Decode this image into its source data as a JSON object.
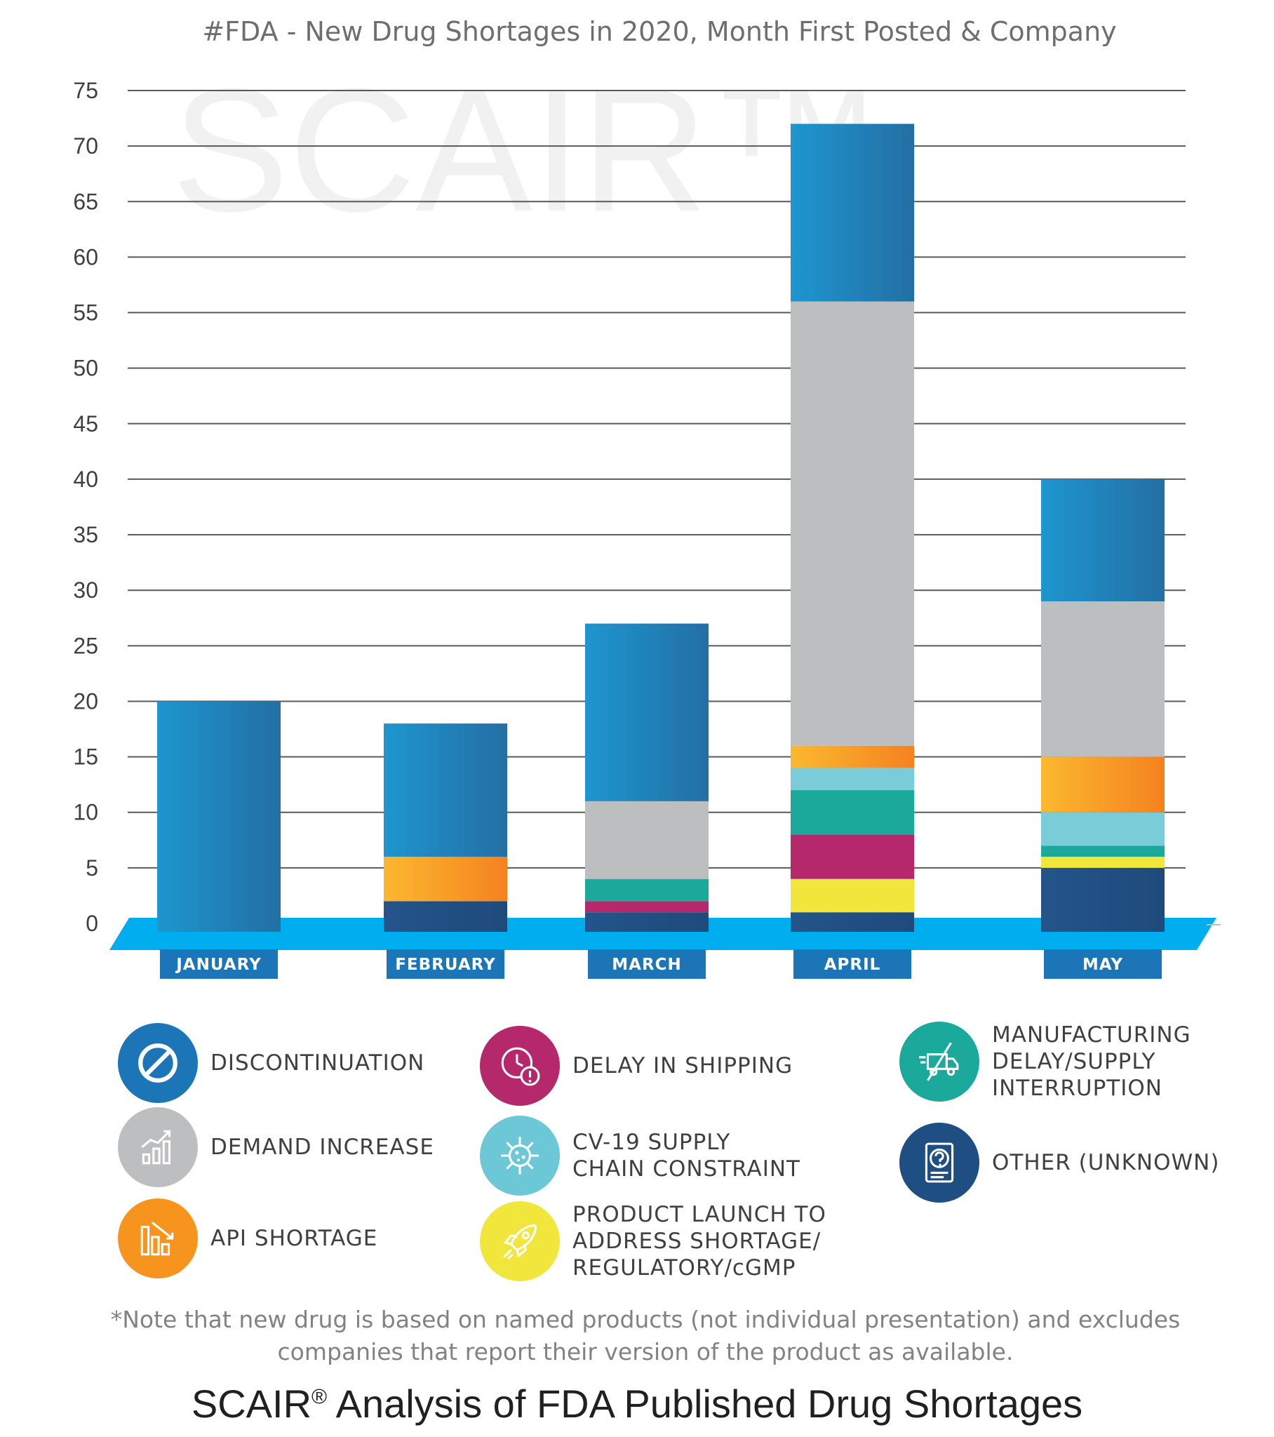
{
  "watermark": "SCAIR™",
  "chart_data": {
    "type": "bar",
    "stacked": true,
    "title": "#FDA - New Drug Shortages in 2020, Month First Posted & Company",
    "categories": [
      "JANUARY",
      "FEBRUARY",
      "MARCH",
      "APRIL",
      "MAY"
    ],
    "yticks": [
      0,
      5,
      10,
      15,
      20,
      25,
      30,
      35,
      40,
      45,
      50,
      55,
      60,
      65,
      70,
      75
    ],
    "ylim": [
      0,
      75
    ],
    "grid": true,
    "series": [
      {
        "name": "OTHER (UNKNOWN)",
        "color": "#1f4e82",
        "values": [
          0,
          2,
          1,
          1,
          5
        ]
      },
      {
        "name": "PRODUCT LAUNCH TO ADDRESS SHORTAGE/ REGULATORY/cGMP",
        "color": "#f0e63c",
        "values": [
          0,
          0,
          0,
          3,
          1
        ]
      },
      {
        "name": "DELAY IN SHIPPING",
        "color": "#b5296c",
        "values": [
          0,
          0,
          1,
          4,
          0
        ]
      },
      {
        "name": "MANUFACTURING DELAY/SUPPLY INTERRUPTION",
        "color": "#1aa99a",
        "values": [
          0,
          0,
          2,
          4,
          1
        ]
      },
      {
        "name": "CV-19 SUPPLY CHAIN CONSTRAINT",
        "color": "#7accd8",
        "values": [
          0,
          0,
          0,
          2,
          3
        ]
      },
      {
        "name": "API SHORTAGE",
        "color": "#f7a82a",
        "values": [
          0,
          4,
          0,
          2,
          5
        ]
      },
      {
        "name": "DEMAND INCREASE",
        "color": "#bcbec0",
        "values": [
          0,
          0,
          7,
          40,
          14
        ]
      },
      {
        "name": "DISCONTINUATION",
        "color": "#1b87c2",
        "values": [
          20,
          12,
          16,
          16,
          11
        ]
      }
    ]
  },
  "legend": [
    {
      "label": "DISCONTINUATION",
      "icon": "no-entry-icon",
      "color": "#1b75b6"
    },
    {
      "label": "DELAY IN SHIPPING",
      "icon": "clock-alert-icon",
      "color": "#b5296c"
    },
    {
      "label": "MANUFACTURING\nDELAY/SUPPLY\nINTERRUPTION",
      "icon": "truck-crossed-icon",
      "color": "#1aa99a"
    },
    {
      "label": "DEMAND INCREASE",
      "icon": "rising-chart-icon",
      "color": "#bcbec0"
    },
    {
      "label": "CV-19 SUPPLY\nCHAIN CONSTRAINT",
      "icon": "virus-icon",
      "color": "#6cc8d6"
    },
    {
      "label": "OTHER (UNKNOWN)",
      "icon": "question-document-icon",
      "color": "#1f4e82"
    },
    {
      "label": "API SHORTAGE",
      "icon": "falling-chart-icon",
      "color": "#f7941d"
    },
    {
      "label": "PRODUCT LAUNCH TO\nADDRESS SHORTAGE/\nREGULATORY/cGMP",
      "icon": "rocket-icon",
      "color": "#f0e63c"
    }
  ],
  "note": "*Note that new drug is based on named products (not individual presentation) and excludes companies that report their version of the product as available.",
  "footer": {
    "brand": "SCAIR",
    "mark": "®",
    "rest": " Analysis of FDA Published Drug Shortages"
  }
}
